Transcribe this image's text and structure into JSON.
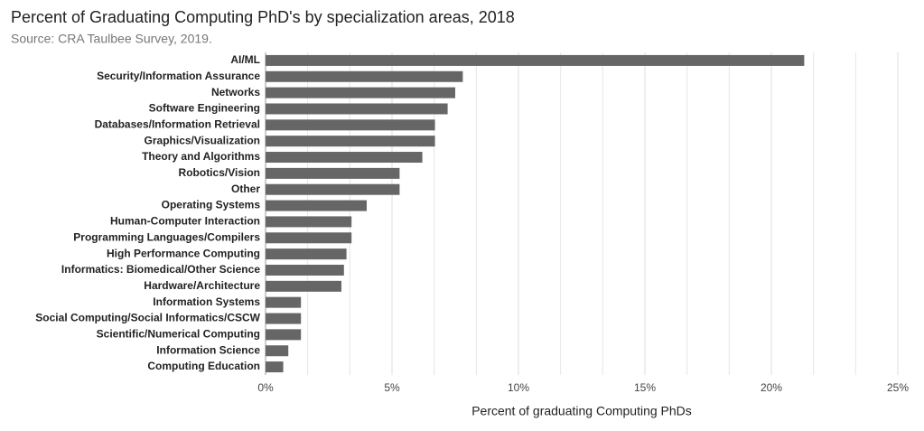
{
  "chart_data": {
    "type": "barh",
    "title": "Percent of Graduating Computing PhD's by specialization areas, 2018",
    "subtitle": "Source: CRA Taulbee Survey, 2019.",
    "x_label": "Percent of graduating Computing PhDs",
    "categories": [
      "AI/ML",
      "Security/Information Assurance",
      "Networks",
      "Software Engineering",
      "Databases/Information Retrieval",
      "Graphics/Visualization",
      "Theory and Algorithms",
      "Robotics/Vision",
      "Other",
      "Operating Systems",
      "Human-Computer Interaction",
      "Programming Languages/Compilers",
      "High Performance Computing",
      "Informatics: Biomedical/Other Science",
      "Hardware/Architecture",
      "Information Systems",
      "Social Computing/Social Informatics/CSCW",
      "Scientific/Numerical Computing",
      "Information Science",
      "Computing Education"
    ],
    "values": [
      21.3,
      7.8,
      7.5,
      7.2,
      6.7,
      6.7,
      6.2,
      5.3,
      5.3,
      4.0,
      3.4,
      3.4,
      3.2,
      3.1,
      3.0,
      1.4,
      1.4,
      1.4,
      0.9,
      0.7
    ],
    "color": "#666666",
    "xlim": [
      0,
      25
    ],
    "xticks": [
      {
        "value": 0,
        "label": "0%"
      },
      {
        "value": 5,
        "label": "5%"
      },
      {
        "value": 10,
        "label": "10%"
      },
      {
        "value": 15,
        "label": "15%"
      },
      {
        "value": 20,
        "label": "20%"
      },
      {
        "value": 25,
        "label": "25%"
      }
    ],
    "grid": true,
    "minor_grid_divisions": 3
  }
}
